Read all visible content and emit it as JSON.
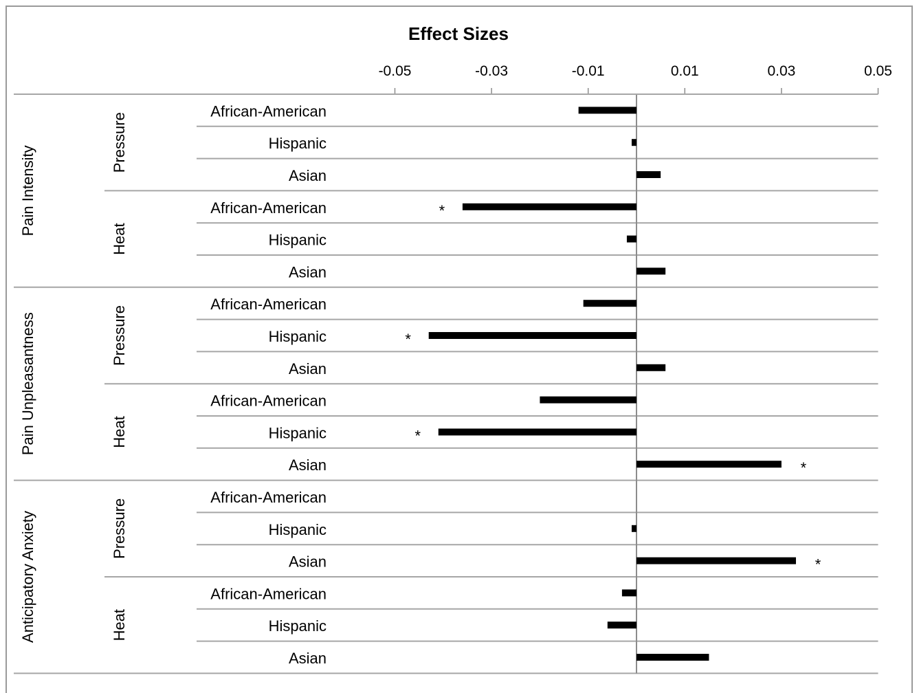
{
  "chart_data": {
    "type": "bar",
    "orientation": "horizontal",
    "title": "Effect Sizes",
    "xlabel": "",
    "ylabel": "",
    "xlim": [
      -0.05,
      0.05
    ],
    "x_ticks": [
      -0.05,
      -0.03,
      -0.01,
      0.01,
      0.03,
      0.05
    ],
    "x_tick_labels": [
      "-0.05",
      "-0.03",
      "-0.01",
      "0.01",
      "0.03",
      "0.05"
    ],
    "legend": "none",
    "groups": [
      {
        "label": "Pain Intensity",
        "subgroups": [
          {
            "label": "Pressure",
            "rows": [
              {
                "category": "African-American",
                "value": -0.012,
                "significant": false
              },
              {
                "category": "Hispanic",
                "value": -0.001,
                "significant": false
              },
              {
                "category": "Asian",
                "value": 0.005,
                "significant": false
              }
            ]
          },
          {
            "label": "Heat",
            "rows": [
              {
                "category": "African-American",
                "value": -0.036,
                "significant": true
              },
              {
                "category": "Hispanic",
                "value": -0.002,
                "significant": false
              },
              {
                "category": "Asian",
                "value": 0.006,
                "significant": false
              }
            ]
          }
        ]
      },
      {
        "label": "Pain Unpleasantness",
        "subgroups": [
          {
            "label": "Pressure",
            "rows": [
              {
                "category": "African-American",
                "value": -0.011,
                "significant": false
              },
              {
                "category": "Hispanic",
                "value": -0.043,
                "significant": true
              },
              {
                "category": "Asian",
                "value": 0.006,
                "significant": false
              }
            ]
          },
          {
            "label": "Heat",
            "rows": [
              {
                "category": "African-American",
                "value": -0.02,
                "significant": false
              },
              {
                "category": "Hispanic",
                "value": -0.041,
                "significant": true
              },
              {
                "category": "Asian",
                "value": 0.03,
                "significant": true
              }
            ]
          }
        ]
      },
      {
        "label": "Anticipatory Anxiety",
        "subgroups": [
          {
            "label": "Pressure",
            "rows": [
              {
                "category": "African-American",
                "value": 0.0,
                "significant": false
              },
              {
                "category": "Hispanic",
                "value": -0.001,
                "significant": false
              },
              {
                "category": "Asian",
                "value": 0.033,
                "significant": true
              }
            ]
          },
          {
            "label": "Heat",
            "rows": [
              {
                "category": "African-American",
                "value": -0.003,
                "significant": false
              },
              {
                "category": "Hispanic",
                "value": -0.006,
                "significant": false
              },
              {
                "category": "Asian",
                "value": 0.015,
                "significant": false
              }
            ]
          }
        ]
      }
    ],
    "significance_marker": "*",
    "grid": true,
    "colors": {
      "bar": "#000000",
      "grid": "#a6a6a6",
      "axis": "#8c8c8c"
    }
  }
}
